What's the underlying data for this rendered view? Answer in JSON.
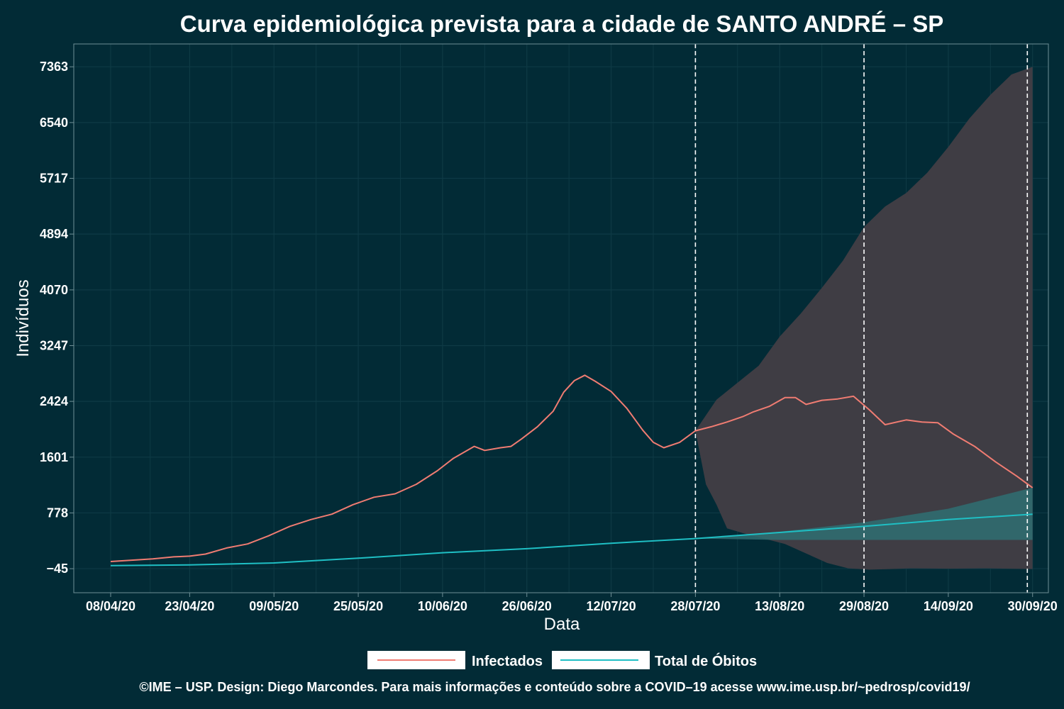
{
  "colors": {
    "background": "#022b36",
    "infectados": "#f07c72",
    "obitos": "#1fbfc4",
    "band_infectados": "#3f3d44",
    "band_obitos": "#2f6f72",
    "grid": "#0e3a45",
    "frame": "#6f8f96"
  },
  "chart_data": {
    "type": "line",
    "title": "Curva epidemiológica prevista para a cidade de SANTO ANDRÉ – SP",
    "xlabel": "Data",
    "ylabel": "Indivíduos",
    "xlim": [
      "2020-04-01",
      "2020-10-03"
    ],
    "ylim": [
      -400,
      7700
    ],
    "x_ticks": [
      "2020-04-08",
      "2020-04-23",
      "2020-05-09",
      "2020-05-25",
      "2020-06-10",
      "2020-06-26",
      "2020-07-12",
      "2020-07-28",
      "2020-08-13",
      "2020-08-29",
      "2020-09-14",
      "2020-09-30"
    ],
    "x_tick_labels": [
      "08/04/20",
      "23/04/20",
      "09/05/20",
      "25/05/20",
      "10/06/20",
      "26/06/20",
      "12/07/20",
      "28/07/20",
      "13/08/20",
      "29/08/20",
      "14/09/20",
      "30/09/20"
    ],
    "y_ticks": [
      -45,
      778,
      1601,
      2424,
      3247,
      4070,
      4894,
      5717,
      6540,
      7363
    ],
    "y_tick_labels": [
      "−45",
      "778",
      "1601",
      "2424",
      "3247",
      "4070",
      "4894",
      "5717",
      "6540",
      "7363"
    ],
    "vertical_lines": [
      "2020-07-28",
      "2020-08-29",
      "2020-09-29"
    ],
    "grid": true,
    "legend_position": "bottom",
    "series": [
      {
        "name": "Infectados",
        "points": [
          [
            "2020-04-08",
            60
          ],
          [
            "2020-04-12",
            80
          ],
          [
            "2020-04-16",
            100
          ],
          [
            "2020-04-20",
            130
          ],
          [
            "2020-04-23",
            140
          ],
          [
            "2020-04-26",
            170
          ],
          [
            "2020-04-30",
            260
          ],
          [
            "2020-05-04",
            320
          ],
          [
            "2020-05-08",
            440
          ],
          [
            "2020-05-12",
            580
          ],
          [
            "2020-05-16",
            680
          ],
          [
            "2020-05-20",
            760
          ],
          [
            "2020-05-24",
            900
          ],
          [
            "2020-05-28",
            1010
          ],
          [
            "2020-06-01",
            1060
          ],
          [
            "2020-06-05",
            1200
          ],
          [
            "2020-06-09",
            1400
          ],
          [
            "2020-06-12",
            1580
          ],
          [
            "2020-06-16",
            1760
          ],
          [
            "2020-06-18",
            1700
          ],
          [
            "2020-06-21",
            1740
          ],
          [
            "2020-06-23",
            1760
          ],
          [
            "2020-06-25",
            1870
          ],
          [
            "2020-06-28",
            2050
          ],
          [
            "2020-07-01",
            2280
          ],
          [
            "2020-07-03",
            2560
          ],
          [
            "2020-07-05",
            2730
          ],
          [
            "2020-07-07",
            2810
          ],
          [
            "2020-07-09",
            2720
          ],
          [
            "2020-07-12",
            2570
          ],
          [
            "2020-07-15",
            2320
          ],
          [
            "2020-07-18",
            2000
          ],
          [
            "2020-07-20",
            1820
          ],
          [
            "2020-07-22",
            1740
          ],
          [
            "2020-07-25",
            1820
          ],
          [
            "2020-07-28",
            1990
          ],
          [
            "2020-07-31",
            2050
          ],
          [
            "2020-08-03",
            2120
          ],
          [
            "2020-08-06",
            2200
          ],
          [
            "2020-08-08",
            2270
          ],
          [
            "2020-08-11",
            2350
          ],
          [
            "2020-08-14",
            2480
          ],
          [
            "2020-08-16",
            2480
          ],
          [
            "2020-08-18",
            2380
          ],
          [
            "2020-08-21",
            2440
          ],
          [
            "2020-08-24",
            2460
          ],
          [
            "2020-08-27",
            2500
          ],
          [
            "2020-08-30",
            2300
          ],
          [
            "2020-09-02",
            2080
          ],
          [
            "2020-09-06",
            2150
          ],
          [
            "2020-09-09",
            2120
          ],
          [
            "2020-09-12",
            2110
          ],
          [
            "2020-09-15",
            1940
          ],
          [
            "2020-09-19",
            1760
          ],
          [
            "2020-09-23",
            1530
          ],
          [
            "2020-09-27",
            1320
          ],
          [
            "2020-09-30",
            1150
          ]
        ]
      },
      {
        "name": "Total de Óbitos",
        "points": [
          [
            "2020-04-08",
            0
          ],
          [
            "2020-04-23",
            10
          ],
          [
            "2020-05-09",
            40
          ],
          [
            "2020-05-25",
            110
          ],
          [
            "2020-06-10",
            190
          ],
          [
            "2020-06-26",
            250
          ],
          [
            "2020-07-12",
            330
          ],
          [
            "2020-07-28",
            400
          ],
          [
            "2020-08-13",
            490
          ],
          [
            "2020-08-29",
            580
          ],
          [
            "2020-09-14",
            680
          ],
          [
            "2020-09-30",
            760
          ]
        ]
      }
    ],
    "bands": [
      {
        "series": "Infectados",
        "upper": [
          [
            "2020-07-28",
            1990
          ],
          [
            "2020-08-01",
            2450
          ],
          [
            "2020-08-05",
            2700
          ],
          [
            "2020-08-09",
            2950
          ],
          [
            "2020-08-13",
            3380
          ],
          [
            "2020-08-17",
            3720
          ],
          [
            "2020-08-21",
            4100
          ],
          [
            "2020-08-25",
            4500
          ],
          [
            "2020-08-29",
            5000
          ],
          [
            "2020-09-02",
            5300
          ],
          [
            "2020-09-06",
            5500
          ],
          [
            "2020-09-10",
            5800
          ],
          [
            "2020-09-14",
            6180
          ],
          [
            "2020-09-18",
            6600
          ],
          [
            "2020-09-22",
            6950
          ],
          [
            "2020-09-26",
            7250
          ],
          [
            "2020-09-30",
            7363
          ]
        ],
        "lower": [
          [
            "2020-07-28",
            1990
          ],
          [
            "2020-07-30",
            1200
          ],
          [
            "2020-08-01",
            900
          ],
          [
            "2020-08-03",
            550
          ],
          [
            "2020-08-06",
            480
          ],
          [
            "2020-08-10",
            400
          ],
          [
            "2020-08-14",
            320
          ],
          [
            "2020-08-18",
            180
          ],
          [
            "2020-08-22",
            40
          ],
          [
            "2020-08-26",
            -40
          ],
          [
            "2020-08-30",
            -60
          ],
          [
            "2020-09-03",
            -50
          ],
          [
            "2020-09-07",
            -40
          ],
          [
            "2020-09-14",
            -45
          ],
          [
            "2020-09-21",
            -40
          ],
          [
            "2020-09-30",
            -50
          ]
        ]
      },
      {
        "series": "Total de Óbitos",
        "upper": [
          [
            "2020-07-28",
            400
          ],
          [
            "2020-08-13",
            500
          ],
          [
            "2020-08-29",
            640
          ],
          [
            "2020-09-14",
            840
          ],
          [
            "2020-09-30",
            1150
          ]
        ],
        "lower": [
          [
            "2020-07-28",
            400
          ],
          [
            "2020-08-13",
            380
          ],
          [
            "2020-08-29",
            380
          ],
          [
            "2020-09-14",
            380
          ],
          [
            "2020-09-30",
            380
          ]
        ]
      }
    ]
  },
  "footer": "©IME – USP. Design: Diego Marcondes. Para mais informações e conteúdo sobre a COVID–19 acesse www.ime.usp.br/~pedrosp/covid19/"
}
